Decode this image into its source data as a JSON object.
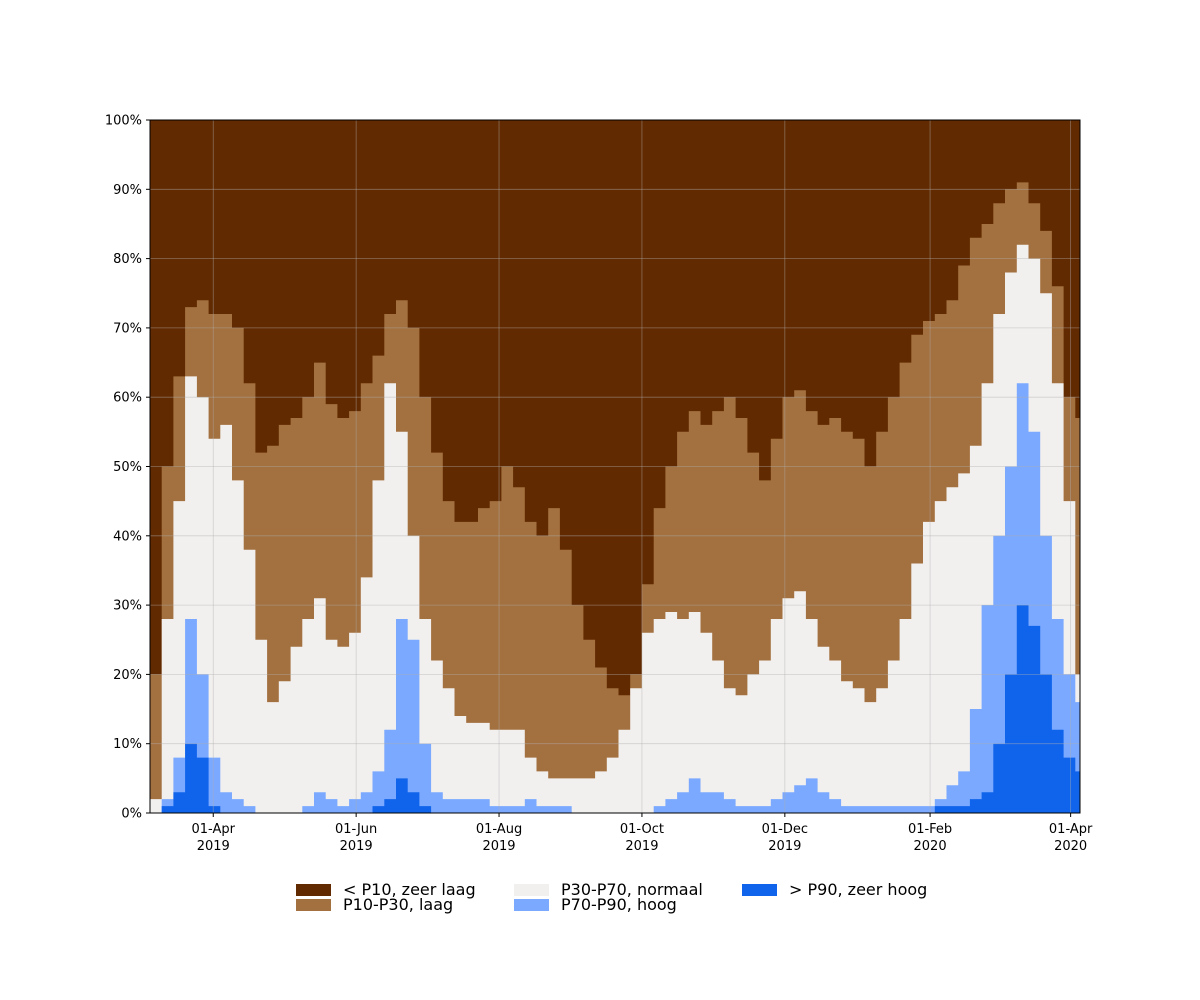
{
  "chart_data": {
    "type": "area",
    "stacked": true,
    "title": "",
    "xlabel": "",
    "ylabel": "",
    "x_range": [
      "2019-03-05",
      "2020-04-05"
    ],
    "ylim": [
      0,
      100
    ],
    "y_ticks": [
      0,
      10,
      20,
      30,
      40,
      50,
      60,
      70,
      80,
      90,
      100
    ],
    "y_tick_labels": [
      "0%",
      "10%",
      "20%",
      "30%",
      "40%",
      "50%",
      "60%",
      "70%",
      "80%",
      "90%",
      "100%"
    ],
    "x_ticks": [
      {
        "date": "2019-04-01",
        "line1": "01-Apr",
        "line2": "2019"
      },
      {
        "date": "2019-06-01",
        "line1": "01-Jun",
        "line2": "2019"
      },
      {
        "date": "2019-08-01",
        "line1": "01-Aug",
        "line2": "2019"
      },
      {
        "date": "2019-10-01",
        "line1": "01-Oct",
        "line2": "2019"
      },
      {
        "date": "2019-12-01",
        "line1": "01-Dec",
        "line2": "2019"
      },
      {
        "date": "2020-02-01",
        "line1": "01-Feb",
        "line2": "2020"
      },
      {
        "date": "2020-04-01",
        "line1": "01-Apr",
        "line2": "2020"
      }
    ],
    "grid": true,
    "legend_position": "bottom-center",
    "series": [
      {
        "name": "> P90, zeer hoog",
        "color": "#1064ec",
        "boundary": "top_p90"
      },
      {
        "name": "P70-P90, hoog",
        "color": "#7aa9ff",
        "boundary": "top_p70"
      },
      {
        "name": "P30-P70, normaal",
        "color": "#f2f0ef",
        "boundary": "top_p30"
      },
      {
        "name": "P10-P30, laag",
        "color": "#a3703f",
        "boundary": "top_p10"
      },
      {
        "name": "< P10, zeer laag",
        "color": "#622a00",
        "boundary": "top"
      }
    ],
    "boundaries": {
      "date": [
        "2019-03-05",
        "2019-03-10",
        "2019-03-15",
        "2019-03-20",
        "2019-03-25",
        "2019-03-30",
        "2019-04-04",
        "2019-04-09",
        "2019-04-14",
        "2019-04-19",
        "2019-04-24",
        "2019-04-29",
        "2019-05-04",
        "2019-05-09",
        "2019-05-14",
        "2019-05-19",
        "2019-05-24",
        "2019-05-29",
        "2019-06-03",
        "2019-06-08",
        "2019-06-13",
        "2019-06-18",
        "2019-06-23",
        "2019-06-28",
        "2019-07-03",
        "2019-07-08",
        "2019-07-13",
        "2019-07-18",
        "2019-07-23",
        "2019-07-28",
        "2019-08-02",
        "2019-08-07",
        "2019-08-12",
        "2019-08-17",
        "2019-08-22",
        "2019-08-27",
        "2019-09-01",
        "2019-09-06",
        "2019-09-11",
        "2019-09-16",
        "2019-09-21",
        "2019-09-26",
        "2019-10-01",
        "2019-10-06",
        "2019-10-11",
        "2019-10-16",
        "2019-10-21",
        "2019-10-26",
        "2019-10-31",
        "2019-11-05",
        "2019-11-10",
        "2019-11-15",
        "2019-11-20",
        "2019-11-25",
        "2019-11-30",
        "2019-12-05",
        "2019-12-10",
        "2019-12-15",
        "2019-12-20",
        "2019-12-25",
        "2019-12-30",
        "2020-01-04",
        "2020-01-09",
        "2020-01-14",
        "2020-01-19",
        "2020-01-24",
        "2020-01-29",
        "2020-02-03",
        "2020-02-08",
        "2020-02-13",
        "2020-02-18",
        "2020-02-23",
        "2020-02-28",
        "2020-03-04",
        "2020-03-09",
        "2020-03-14",
        "2020-03-19",
        "2020-03-24",
        "2020-03-29",
        "2020-04-03"
      ],
      "top_p90": [
        0,
        1,
        3,
        10,
        8,
        1,
        0,
        0,
        0,
        0,
        0,
        0,
        0,
        0,
        0,
        0,
        0,
        0,
        0,
        1,
        2,
        5,
        3,
        1,
        0,
        0,
        0,
        0,
        0,
        0,
        0,
        0,
        0,
        0,
        0,
        0,
        0,
        0,
        0,
        0,
        0,
        0,
        0,
        0,
        0,
        0,
        0,
        0,
        0,
        0,
        0,
        0,
        0,
        0,
        0,
        0,
        0,
        0,
        0,
        0,
        0,
        0,
        0,
        0,
        0,
        0,
        0,
        1,
        1,
        1,
        2,
        3,
        10,
        20,
        30,
        27,
        20,
        12,
        8,
        6
      ],
      "top_p70": [
        0,
        2,
        8,
        28,
        20,
        8,
        3,
        2,
        1,
        0,
        0,
        0,
        0,
        1,
        3,
        2,
        1,
        2,
        3,
        6,
        12,
        28,
        25,
        10,
        3,
        2,
        2,
        2,
        2,
        1,
        1,
        1,
        2,
        1,
        1,
        1,
        0,
        0,
        0,
        0,
        0,
        0,
        0,
        1,
        2,
        3,
        5,
        3,
        3,
        2,
        1,
        1,
        1,
        2,
        3,
        4,
        5,
        3,
        2,
        1,
        1,
        1,
        1,
        1,
        1,
        1,
        1,
        2,
        4,
        6,
        15,
        30,
        40,
        50,
        62,
        55,
        40,
        28,
        20,
        16
      ],
      "top_p30": [
        2,
        28,
        45,
        63,
        60,
        54,
        56,
        48,
        38,
        25,
        16,
        19,
        24,
        28,
        31,
        25,
        24,
        26,
        34,
        48,
        62,
        55,
        40,
        28,
        22,
        18,
        14,
        13,
        13,
        12,
        12,
        12,
        8,
        6,
        5,
        5,
        5,
        5,
        6,
        8,
        12,
        18,
        26,
        28,
        29,
        28,
        29,
        26,
        22,
        18,
        17,
        20,
        22,
        28,
        31,
        32,
        28,
        24,
        22,
        19,
        18,
        16,
        18,
        22,
        28,
        36,
        42,
        45,
        47,
        49,
        53,
        62,
        72,
        78,
        82,
        80,
        75,
        62,
        45,
        20
      ],
      "top_p10": [
        20,
        50,
        63,
        73,
        74,
        72,
        72,
        70,
        62,
        52,
        53,
        56,
        57,
        60,
        65,
        59,
        57,
        58,
        62,
        66,
        72,
        74,
        70,
        60,
        52,
        45,
        42,
        42,
        44,
        45,
        50,
        47,
        42,
        40,
        44,
        38,
        30,
        25,
        21,
        18,
        17,
        20,
        33,
        44,
        50,
        55,
        58,
        56,
        58,
        60,
        57,
        52,
        48,
        54,
        60,
        61,
        58,
        56,
        57,
        55,
        54,
        50,
        55,
        60,
        65,
        69,
        71,
        72,
        74,
        79,
        83,
        85,
        88,
        90,
        91,
        88,
        84,
        76,
        60,
        57
      ],
      "top": [
        100,
        100,
        100,
        100,
        100,
        100,
        100,
        100,
        100,
        100,
        100,
        100,
        100,
        100,
        100,
        100,
        100,
        100,
        100,
        100,
        100,
        100,
        100,
        100,
        100,
        100,
        100,
        100,
        100,
        100,
        100,
        100,
        100,
        100,
        100,
        100,
        100,
        100,
        100,
        100,
        100,
        100,
        100,
        100,
        100,
        100,
        100,
        100,
        100,
        100,
        100,
        100,
        100,
        100,
        100,
        100,
        100,
        100,
        100,
        100,
        100,
        100,
        100,
        100,
        100,
        100,
        100,
        100,
        100,
        100,
        100,
        100,
        100,
        100,
        100,
        100,
        100,
        100,
        100,
        100
      ]
    }
  },
  "legend": [
    {
      "label": "< P10, zeer laag",
      "color": "#622a00"
    },
    {
      "label": "P10-P30, laag",
      "color": "#a3703f"
    },
    {
      "label": "P30-P70, normaal",
      "color": "#f2f0ef"
    },
    {
      "label": "P70-P90, hoog",
      "color": "#7aa9ff"
    },
    {
      "label": "> P90, zeer hoog",
      "color": "#1064ec"
    }
  ]
}
